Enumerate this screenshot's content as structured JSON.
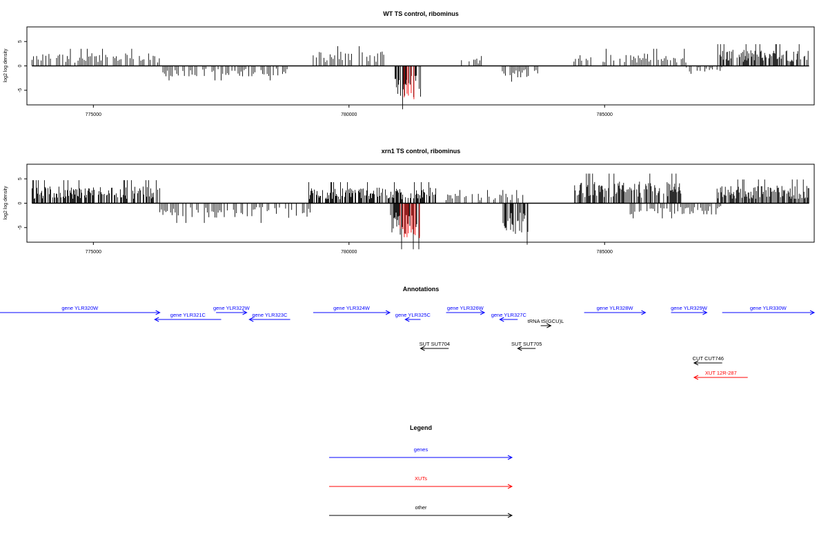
{
  "colors": {
    "gene": "#0000ff",
    "xut": "#ff0000",
    "other": "#000000",
    "negative_strand_highlight": "#ff0000"
  },
  "chart_data": [
    {
      "type": "bar",
      "title": "WT TS control, ribominus",
      "xlabel": "",
      "ylabel": "log2 log density",
      "xlim": [
        773700,
        789100
      ],
      "ylim": [
        -8,
        8
      ],
      "x_ticks": [
        "775000",
        "780000",
        "785000"
      ],
      "y_ticks": [
        "5",
        "0",
        "-5"
      ],
      "series": [
        {
          "strand": "plus",
          "segments": [
            {
              "from": 773800,
              "to": 776300,
              "amp": 2.6
            },
            {
              "from": 779300,
              "to": 780700,
              "amp": 3.0
            },
            {
              "from": 782200,
              "to": 782600,
              "amp": 1.5
            },
            {
              "from": 784400,
              "to": 786600,
              "amp": 2.6
            },
            {
              "from": 787200,
              "to": 789000,
              "amp": 3.3
            }
          ]
        },
        {
          "strand": "minus",
          "segments": [
            {
              "from": 776300,
              "to": 778800,
              "amp": 2.2
            },
            {
              "from": 780900,
              "to": 781400,
              "amp": 6.6
            },
            {
              "from": 783000,
              "to": 783700,
              "amp": 2.4
            },
            {
              "from": 786600,
              "to": 787300,
              "amp": 1.2
            }
          ]
        },
        {
          "strand": "minus-highlight",
          "segments": [
            {
              "from": 781000,
              "to": 781400,
              "amp": 7.2
            }
          ]
        }
      ]
    },
    {
      "type": "bar",
      "title": "xrn1 TS control, ribominus",
      "xlabel": "",
      "ylabel": "log2 log density",
      "xlim": [
        773700,
        789100
      ],
      "ylim": [
        -8,
        8
      ],
      "x_ticks": [
        "775000",
        "780000",
        "785000"
      ],
      "y_ticks": [
        "5",
        "0",
        "-5"
      ],
      "series": [
        {
          "strand": "plus",
          "segments": [
            {
              "from": 773800,
              "to": 776300,
              "amp": 3.5
            },
            {
              "from": 779200,
              "to": 781700,
              "amp": 3.2
            },
            {
              "from": 781900,
              "to": 783400,
              "amp": 2.0
            },
            {
              "from": 784400,
              "to": 786500,
              "amp": 4.5
            },
            {
              "from": 787200,
              "to": 789000,
              "amp": 3.6
            }
          ]
        },
        {
          "strand": "minus",
          "segments": [
            {
              "from": 776300,
              "to": 779300,
              "amp": 3.0
            },
            {
              "from": 780800,
              "to": 781400,
              "amp": 7.0
            },
            {
              "from": 783000,
              "to": 783500,
              "amp": 6.3
            },
            {
              "from": 785500,
              "to": 787300,
              "amp": 2.3
            }
          ]
        },
        {
          "strand": "minus-highlight",
          "segments": [
            {
              "from": 781000,
              "to": 781400,
              "amp": 7.4
            }
          ]
        }
      ]
    }
  ],
  "annotations": {
    "title": "Annotations",
    "features": [
      {
        "label": "gene YLR320W",
        "kind": "gene",
        "start": 773100,
        "end": 776300,
        "dir": "right"
      },
      {
        "label": "gene YLR321C",
        "kind": "gene",
        "start": 776200,
        "end": 777500,
        "dir": "left"
      },
      {
        "label": "gene YLR322W",
        "kind": "gene",
        "start": 777400,
        "end": 778000,
        "dir": "right"
      },
      {
        "label": "gene YLR323C",
        "kind": "gene",
        "start": 778050,
        "end": 778850,
        "dir": "left"
      },
      {
        "label": "gene YLR324W",
        "kind": "gene",
        "start": 779300,
        "end": 780800,
        "dir": "right"
      },
      {
        "label": "gene YLR325C",
        "kind": "gene",
        "start": 781100,
        "end": 781400,
        "dir": "left"
      },
      {
        "label": "gene YLR326W",
        "kind": "gene",
        "start": 781900,
        "end": 782650,
        "dir": "right"
      },
      {
        "label": "gene YLR327C",
        "kind": "gene",
        "start": 782950,
        "end": 783300,
        "dir": "left"
      },
      {
        "label": "tRNA tS(GCU)L",
        "kind": "other",
        "start": 783750,
        "end": 783950,
        "dir": "right"
      },
      {
        "label": "gene YLR328W",
        "kind": "gene",
        "start": 784600,
        "end": 785800,
        "dir": "right"
      },
      {
        "label": "gene YLR329W",
        "kind": "gene",
        "start": 786300,
        "end": 787000,
        "dir": "right"
      },
      {
        "label": "gene YLR330W",
        "kind": "gene",
        "start": 787300,
        "end": 789100,
        "dir": "right"
      },
      {
        "label": "SUT SUT704",
        "kind": "other",
        "start": 781400,
        "end": 781950,
        "dir": "left"
      },
      {
        "label": "SUT SUT705",
        "kind": "other",
        "start": 783300,
        "end": 783650,
        "dir": "left"
      },
      {
        "label": "CUT CUT746",
        "kind": "other",
        "start": 786750,
        "end": 787300,
        "dir": "left"
      },
      {
        "label": "XUT 12R-287",
        "kind": "xut",
        "start": 786750,
        "end": 787800,
        "dir": "left"
      }
    ]
  },
  "legend": {
    "title": "Legend",
    "items": [
      {
        "label": "genes",
        "kind": "gene"
      },
      {
        "label": "XUTs",
        "kind": "xut"
      },
      {
        "label": "other",
        "kind": "other"
      }
    ]
  }
}
